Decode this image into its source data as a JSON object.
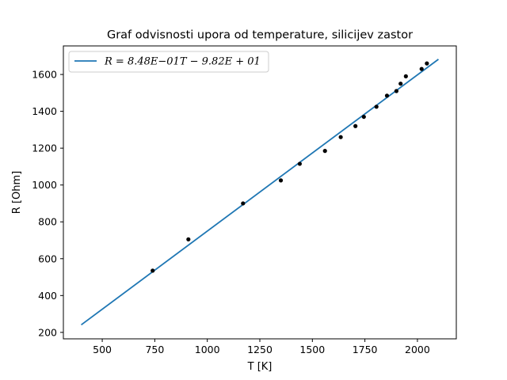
{
  "chart_data": {
    "type": "scatter",
    "title": "Graf odvisnosti upora od temperature, silicijev zastor",
    "xlabel": "T [K]",
    "ylabel": "R [Ohm]",
    "xlim": [
      315,
      2185
    ],
    "ylim": [
      165,
      1755
    ],
    "xticks": [
      500,
      750,
      1000,
      1250,
      1500,
      1750,
      2000
    ],
    "yticks": [
      200,
      400,
      600,
      800,
      1000,
      1200,
      1400,
      1600
    ],
    "grid": false,
    "legend": {
      "placement": "top-left",
      "entries": [
        {
          "label": "R = 8.48E−01T − 9.82E + 01",
          "color": "#1f77b4",
          "kind": "line"
        }
      ]
    },
    "series": [
      {
        "kind": "points",
        "color": "#000000",
        "x": [
          740,
          910,
          1170,
          1350,
          1440,
          1560,
          1635,
          1705,
          1745,
          1805,
          1855,
          1900,
          1920,
          1945,
          2020,
          2045
        ],
        "y": [
          535,
          705,
          900,
          1025,
          1115,
          1185,
          1260,
          1320,
          1370,
          1425,
          1485,
          1510,
          1550,
          1590,
          1630,
          1660
        ]
      },
      {
        "kind": "fit",
        "label": "R = 8.48E−01T − 9.82E + 01",
        "color": "#1f77b4",
        "x": [
          400,
          2100
        ],
        "y": [
          240.9,
          1682.6
        ]
      }
    ]
  }
}
